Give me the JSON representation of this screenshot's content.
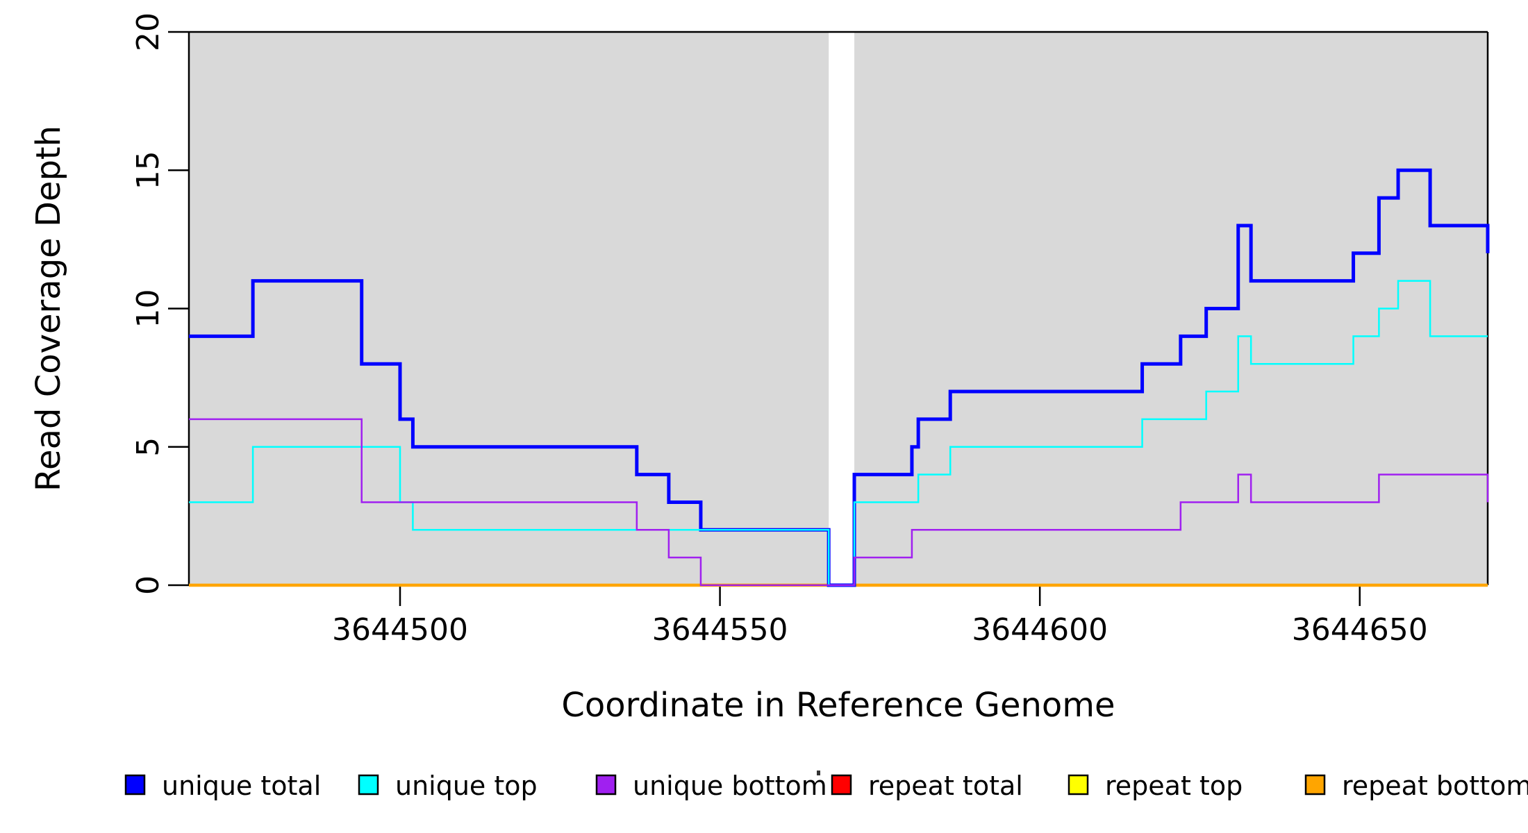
{
  "figure": {
    "background": "#ffffff"
  },
  "chart_data": {
    "type": "line",
    "subtype": "step-after",
    "title": "",
    "xlabel": "Coordinate in Reference Genome",
    "ylabel": "Read Coverage Depth",
    "xlim": [
      3644467,
      3644670
    ],
    "ylim": [
      0,
      20
    ],
    "grid": "off",
    "legend_position": "bottom",
    "plot_background": "#d9d9d9",
    "axis_color": "#000000",
    "masked_gap_x": [
      3644567,
      3644571
    ],
    "x_ticks": [
      {
        "value": 3644500,
        "label": "3644500"
      },
      {
        "value": 3644550,
        "label": "3644550"
      },
      {
        "value": 3644600,
        "label": "3644600"
      },
      {
        "value": 3644650,
        "label": "3644650"
      }
    ],
    "y_ticks": [
      {
        "value": 0,
        "label": "0"
      },
      {
        "value": 5,
        "label": "5"
      },
      {
        "value": 10,
        "label": "10"
      },
      {
        "value": 15,
        "label": "15"
      },
      {
        "value": 20,
        "label": "20"
      }
    ],
    "draw_order": [
      "repeat-total",
      "repeat-top",
      "repeat-bottom",
      "unique-total",
      "unique-top",
      "unique-bottom"
    ],
    "series": [
      {
        "id": "unique-total",
        "name": "unique total",
        "color": "#0000ff",
        "line_width": 5,
        "points": [
          [
            3644467,
            9
          ],
          [
            3644477,
            11
          ],
          [
            3644494,
            8
          ],
          [
            3644500,
            6
          ],
          [
            3644502,
            5
          ],
          [
            3644537,
            4
          ],
          [
            3644542,
            3
          ],
          [
            3644547,
            2
          ],
          [
            3644567,
            0
          ],
          [
            3644571,
            4
          ],
          [
            3644580,
            5
          ],
          [
            3644581,
            6
          ],
          [
            3644586,
            7
          ],
          [
            3644616,
            8
          ],
          [
            3644622,
            9
          ],
          [
            3644626,
            10
          ],
          [
            3644631,
            13
          ],
          [
            3644633,
            11
          ],
          [
            3644649,
            12
          ],
          [
            3644653,
            14
          ],
          [
            3644656,
            15
          ],
          [
            3644661,
            13
          ],
          [
            3644670,
            12
          ]
        ]
      },
      {
        "id": "unique-top",
        "name": "unique top",
        "color": "#00ffff",
        "line_width": 2.5,
        "points": [
          [
            3644467,
            3
          ],
          [
            3644477,
            5
          ],
          [
            3644500,
            3
          ],
          [
            3644502,
            2
          ],
          [
            3644567,
            0
          ],
          [
            3644571,
            3
          ],
          [
            3644581,
            4
          ],
          [
            3644586,
            5
          ],
          [
            3644616,
            6
          ],
          [
            3644626,
            7
          ],
          [
            3644631,
            9
          ],
          [
            3644633,
            8
          ],
          [
            3644649,
            9
          ],
          [
            3644653,
            10
          ],
          [
            3644656,
            11
          ],
          [
            3644661,
            9
          ],
          [
            3644670,
            9
          ]
        ]
      },
      {
        "id": "unique-bottom",
        "name": "unique bottom",
        "color": "#a020f0",
        "line_width": 2.5,
        "points": [
          [
            3644467,
            6
          ],
          [
            3644494,
            3
          ],
          [
            3644537,
            2
          ],
          [
            3644542,
            1
          ],
          [
            3644547,
            0
          ],
          [
            3644571,
            1
          ],
          [
            3644580,
            2
          ],
          [
            3644622,
            3
          ],
          [
            3644631,
            4
          ],
          [
            3644633,
            3
          ],
          [
            3644653,
            4
          ],
          [
            3644670,
            3
          ]
        ]
      },
      {
        "id": "repeat-total",
        "name": "repeat total",
        "color": "#ff0000",
        "line_width": 2.5,
        "points": [
          [
            3644467,
            0
          ],
          [
            3644670,
            0
          ]
        ]
      },
      {
        "id": "repeat-top",
        "name": "repeat top",
        "color": "#ffff00",
        "line_width": 2.5,
        "points": [
          [
            3644467,
            0
          ],
          [
            3644670,
            0
          ]
        ]
      },
      {
        "id": "repeat-bottom",
        "name": "repeat bottom",
        "color": "#ffa500",
        "line_width": 4.5,
        "points": [
          [
            3644467,
            0
          ],
          [
            3644670,
            0
          ]
        ]
      }
    ],
    "legend": [
      {
        "label": "unique total",
        "color": "#0000ff"
      },
      {
        "label": "unique top",
        "color": "#00ffff"
      },
      {
        "label": "unique bottom",
        "color": "#a020f0"
      },
      {
        "label": "repeat total",
        "color": "#ff0000"
      },
      {
        "label": "repeat top",
        "color": "#ffff00"
      },
      {
        "label": "repeat bottom",
        "color": "#ffa500"
      }
    ]
  }
}
